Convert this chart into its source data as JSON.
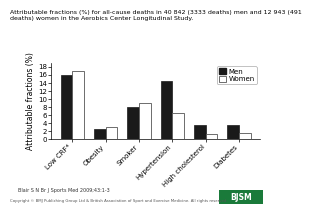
{
  "title_line1": "Attributable fractions (%) for all-cause deaths in 40 842 (3333 deaths) men and 12 943 (491",
  "title_line2": "deaths) women in the Aerobics Center Longitudinal Study.",
  "categories": [
    "Low CRF*",
    "Obesity",
    "Smoker",
    "Hypertension",
    "High cholesterol",
    "Diabetes"
  ],
  "men_values": [
    16.0,
    2.5,
    8.0,
    14.5,
    3.5,
    3.5
  ],
  "women_values": [
    17.0,
    3.0,
    9.0,
    6.5,
    1.2,
    1.5
  ],
  "ylabel": "Attributable fractions (%)",
  "ylim": [
    0,
    19
  ],
  "yticks": [
    0,
    2,
    4,
    6,
    8,
    10,
    12,
    14,
    16,
    18
  ],
  "men_color": "#1a1a1a",
  "women_facecolor": "#ffffff",
  "women_edgecolor": "#555555",
  "men_label": "Men",
  "women_label": "Women",
  "footnote": "Blair S N Br J Sports Med 2009;43:1-3",
  "copyright": "Copyright © BMJ Publishing Group Ltd & British Association of Sport and Exercise Medicine. All rights reserved.",
  "title_fontsize": 4.5,
  "axis_fontsize": 5.5,
  "tick_fontsize": 5.0,
  "legend_fontsize": 5.0,
  "bar_width": 0.35,
  "background_color": "#ffffff"
}
